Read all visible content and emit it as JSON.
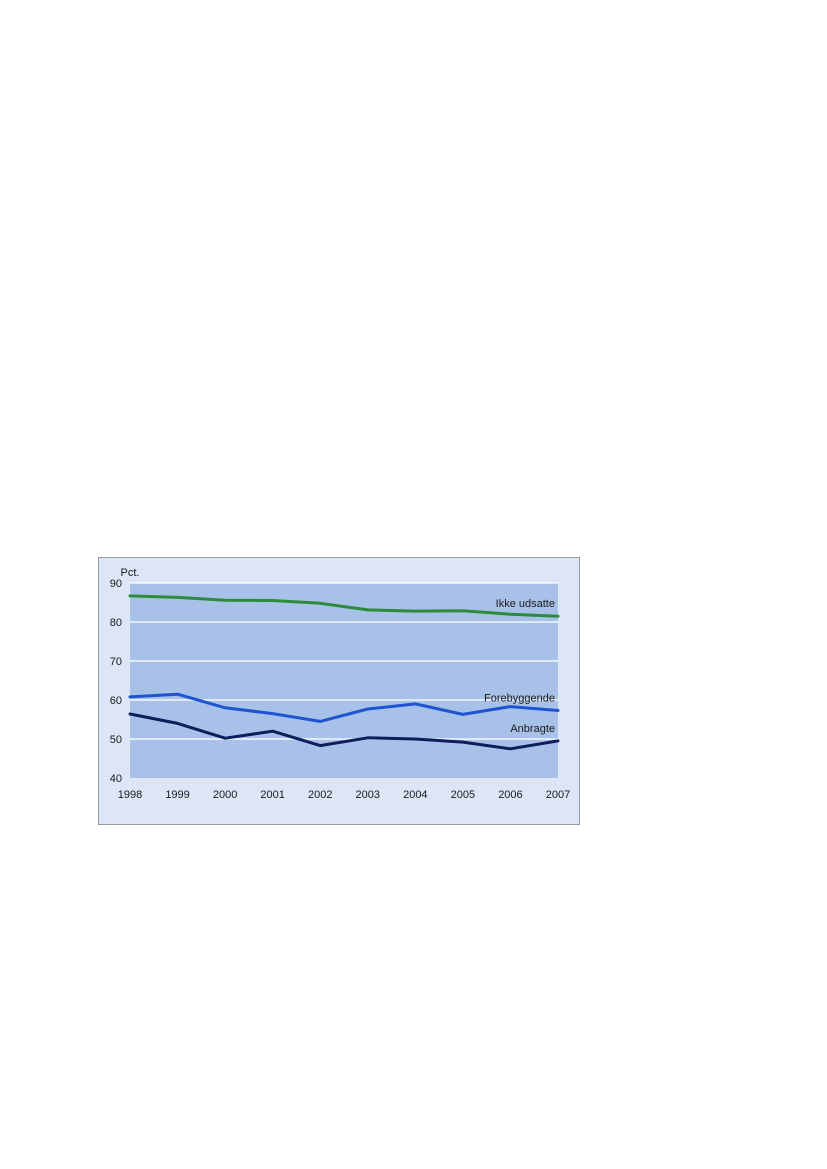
{
  "chart_data": {
    "type": "line",
    "ylabel": "Pct.",
    "xlabel": "",
    "x": [
      1998,
      1999,
      2000,
      2001,
      2002,
      2003,
      2004,
      2005,
      2006,
      2007
    ],
    "x_tick_labels": [
      "1998",
      "1999",
      "2000",
      "2001",
      "2002",
      "2003",
      "2004",
      "2005",
      "2006",
      "2007"
    ],
    "ylim": [
      40,
      90
    ],
    "yticks": [
      40,
      50,
      60,
      70,
      80,
      90
    ],
    "y_tick_labels": [
      "40",
      "50",
      "60",
      "70",
      "80",
      "90"
    ],
    "grid": true,
    "legend": "none (series labelled directly at right end of lines)",
    "series": [
      {
        "name": "Ikke udsatte",
        "color": "#2e8b3c",
        "values": [
          86.7,
          86.3,
          85.6,
          85.5,
          84.8,
          83.1,
          82.8,
          82.9,
          82.0,
          81.5
        ]
      },
      {
        "name": "Forebyggende",
        "color": "#1f54d0",
        "values": [
          60.8,
          61.5,
          58.0,
          56.5,
          54.5,
          57.7,
          59.0,
          56.3,
          58.3,
          57.3
        ]
      },
      {
        "name": "Anbragte",
        "color": "#0a1f5c",
        "values": [
          56.4,
          54.0,
          50.2,
          52.0,
          48.3,
          50.3,
          50.0,
          49.2,
          47.5,
          49.5
        ]
      }
    ],
    "colors": {
      "figure_background": "#dde6f6",
      "plot_background": "#a8c1e9",
      "gridline": "#ffffff",
      "border": "#9a9a9a"
    }
  }
}
